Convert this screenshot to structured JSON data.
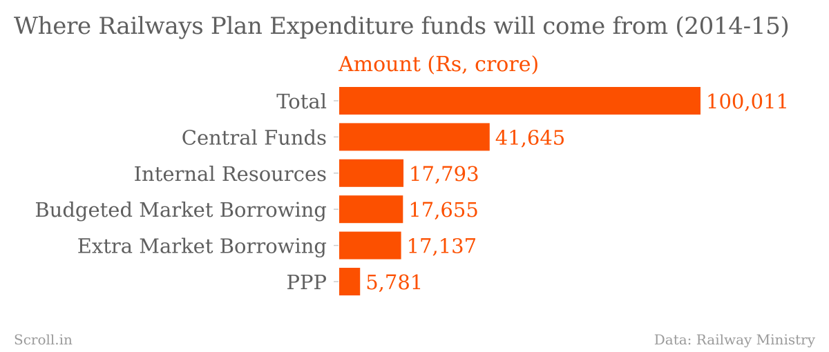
{
  "title": "Where Railways Plan Expenditure funds will come from (2014-15)",
  "footer": {
    "source_site": "Scroll.in",
    "credit": "Data: Railway Ministry"
  },
  "colors": {
    "bar": "#fc5000",
    "label_text": "#5f5f5f",
    "tick": "#cccccc"
  },
  "chart_data": {
    "type": "bar",
    "orientation": "horizontal",
    "categories": [
      "Total",
      "Central Funds",
      "Internal Resources",
      "Budgeted Market Borrowing",
      "Extra Market Borrowing",
      "PPP"
    ],
    "series": [
      {
        "name": "Amount (Rs, crore)",
        "values": [
          100011,
          41645,
          17793,
          17655,
          17137,
          5781
        ],
        "value_labels": [
          "100,011",
          "41,645",
          "17,793",
          "17,655",
          "17,137",
          "5,781"
        ]
      }
    ],
    "xlim": [
      0,
      100011
    ],
    "grid": false
  }
}
